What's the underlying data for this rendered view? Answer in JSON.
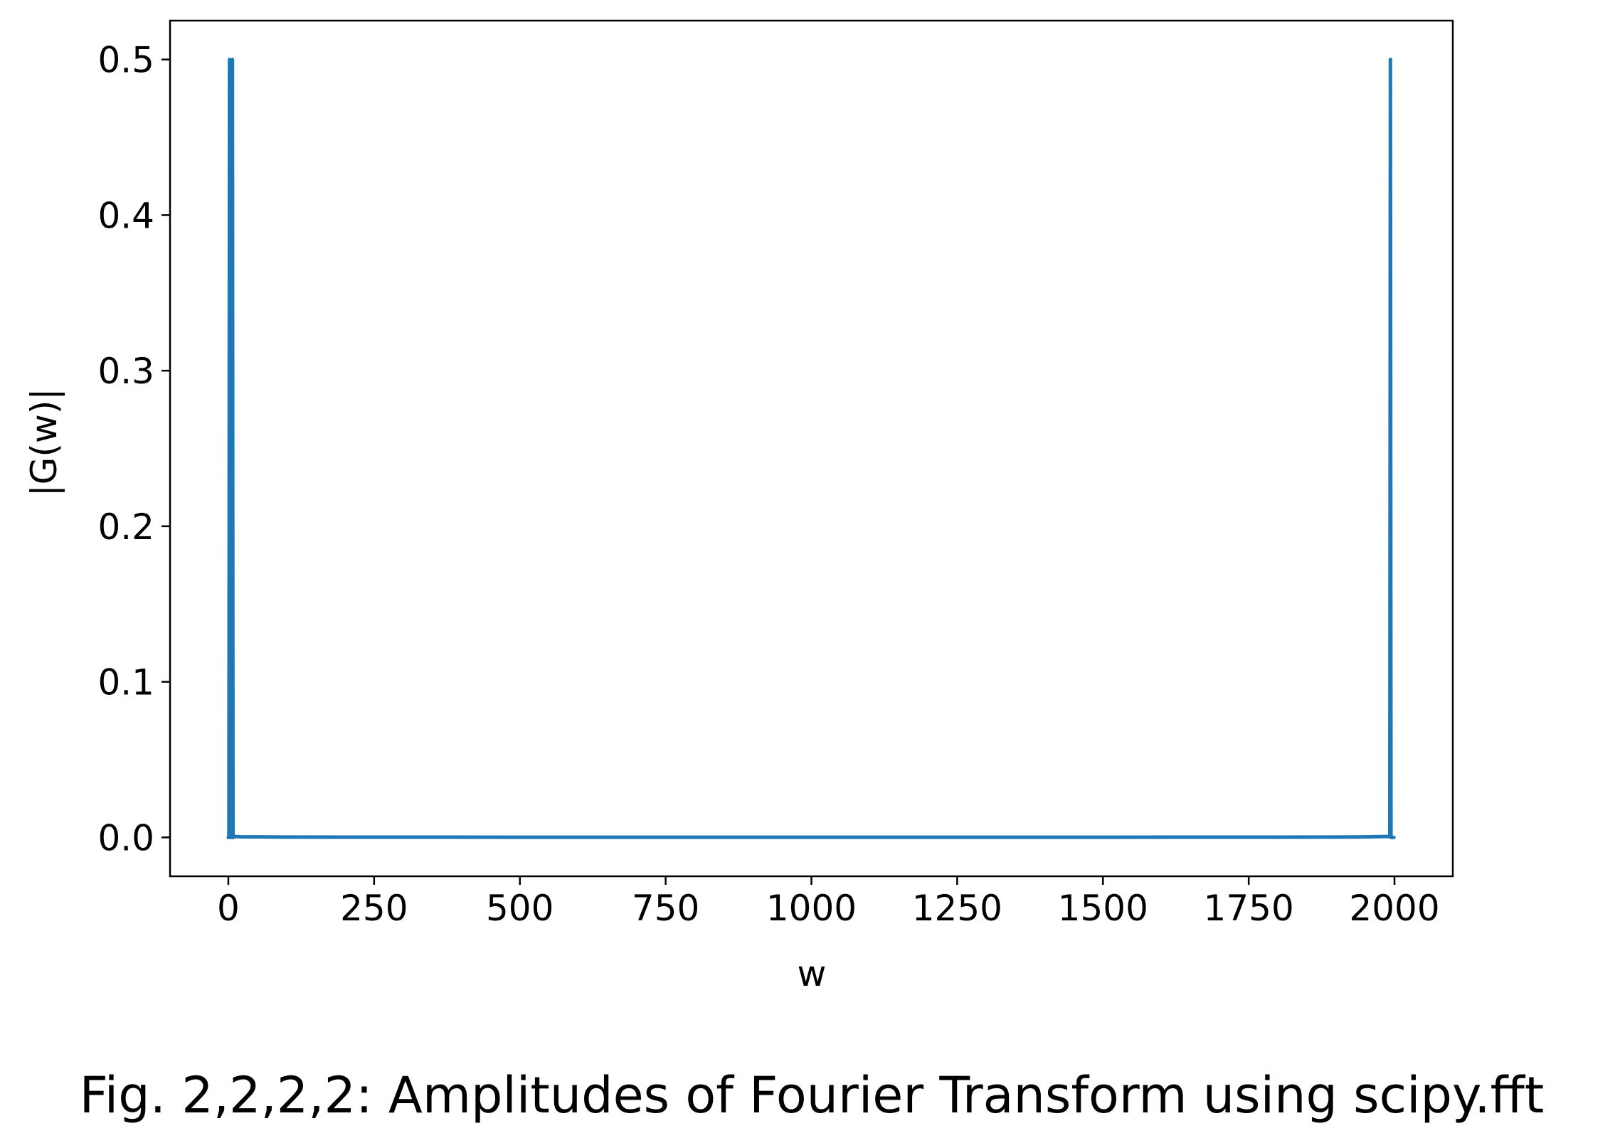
{
  "chart_data": {
    "type": "line",
    "xlabel": "w",
    "ylabel": "|G(w)|",
    "xlim": [
      -100,
      2100
    ],
    "ylim": [
      -0.025,
      0.525
    ],
    "x_ticks": [
      0,
      250,
      500,
      750,
      1000,
      1250,
      1500,
      1750,
      2000
    ],
    "x_tick_labels": [
      "0",
      "250",
      "500",
      "750",
      "1000",
      "1250",
      "1500",
      "1750",
      "2000"
    ],
    "y_ticks": [
      0.0,
      0.1,
      0.2,
      0.3,
      0.4,
      0.5
    ],
    "y_tick_labels": [
      "0.0",
      "0.1",
      "0.2",
      "0.3",
      "0.4",
      "0.5"
    ],
    "grid": false,
    "line_color": "#1f77b4",
    "series": [
      {
        "x": [
          0,
          1,
          2,
          3,
          4,
          5,
          6,
          7,
          8,
          9,
          10,
          20,
          50,
          100,
          500,
          1000,
          1500,
          1900,
          1950,
          1990,
          1991,
          1992,
          1993,
          1994,
          1995,
          1996,
          1997,
          1998,
          1999
        ],
        "values": [
          0.0,
          0.0,
          0.5,
          0.0,
          0.0,
          0.0,
          0.0,
          0.5,
          0.0,
          0.0,
          0.0006,
          0.0004,
          0.0003,
          0.0002,
          0.0001,
          0.0001,
          0.0001,
          0.0002,
          0.0003,
          0.0006,
          0.0006,
          0.0006,
          0.5,
          0.0,
          0.0,
          0.0,
          0.0,
          0.0,
          0.0
        ]
      }
    ]
  },
  "caption": "Fig. 2,2,2,2: Amplitudes of Fourier Transform using scipy.fft"
}
